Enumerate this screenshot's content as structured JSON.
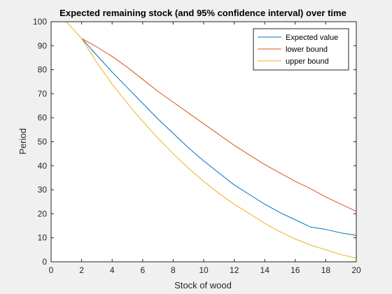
{
  "chart_data": {
    "type": "line",
    "title": "Expected remaining stock (and 95% confidence interval) over time",
    "xlabel": "Stock of wood",
    "ylabel": "Period",
    "xlim": [
      0,
      20
    ],
    "ylim": [
      0,
      100
    ],
    "xticks": [
      "0",
      "2",
      "4",
      "6",
      "8",
      "10",
      "12",
      "14",
      "16",
      "18",
      "20"
    ],
    "yticks": [
      "0",
      "10",
      "20",
      "30",
      "40",
      "50",
      "60",
      "70",
      "80",
      "90",
      "100"
    ],
    "grid": false,
    "legend_position": "top-right",
    "series": [
      {
        "name": "Expected value",
        "color": "#0072bd",
        "x": [
          2,
          3,
          4,
          5,
          6,
          7,
          8,
          9,
          10,
          11,
          12,
          13,
          14,
          15,
          16,
          17,
          18,
          19,
          20
        ],
        "y": [
          93,
          86,
          79,
          72.5,
          66,
          59.5,
          53.5,
          47.5,
          42,
          37,
          32,
          28,
          24,
          20.5,
          17.5,
          14.5,
          13.5,
          12,
          11
        ]
      },
      {
        "name": "lower bound",
        "color": "#d95319",
        "x": [
          2,
          3,
          4,
          5,
          6,
          7,
          8,
          9,
          10,
          11,
          12,
          13,
          14,
          15,
          16,
          17,
          18,
          19,
          20
        ],
        "y": [
          93,
          89.5,
          85.5,
          81,
          76,
          71,
          66.5,
          62,
          57.5,
          53,
          48.5,
          44.5,
          40.5,
          37,
          33.5,
          30.5,
          27,
          24,
          21
        ]
      },
      {
        "name": "upper bound",
        "color": "#edb120",
        "x": [
          1,
          2,
          3,
          4,
          5,
          6,
          7,
          8,
          9,
          10,
          11,
          12,
          13,
          14,
          15,
          16,
          17,
          18,
          19,
          20
        ],
        "y": [
          100,
          93,
          83,
          74,
          66,
          58.5,
          51.5,
          45,
          39,
          33.5,
          28.5,
          24,
          20,
          16,
          12.5,
          9.5,
          7,
          5,
          3,
          1.5
        ]
      }
    ]
  }
}
